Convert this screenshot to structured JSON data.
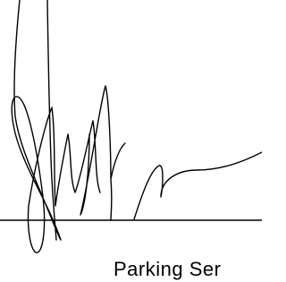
{
  "caption": "Parking Ser"
}
